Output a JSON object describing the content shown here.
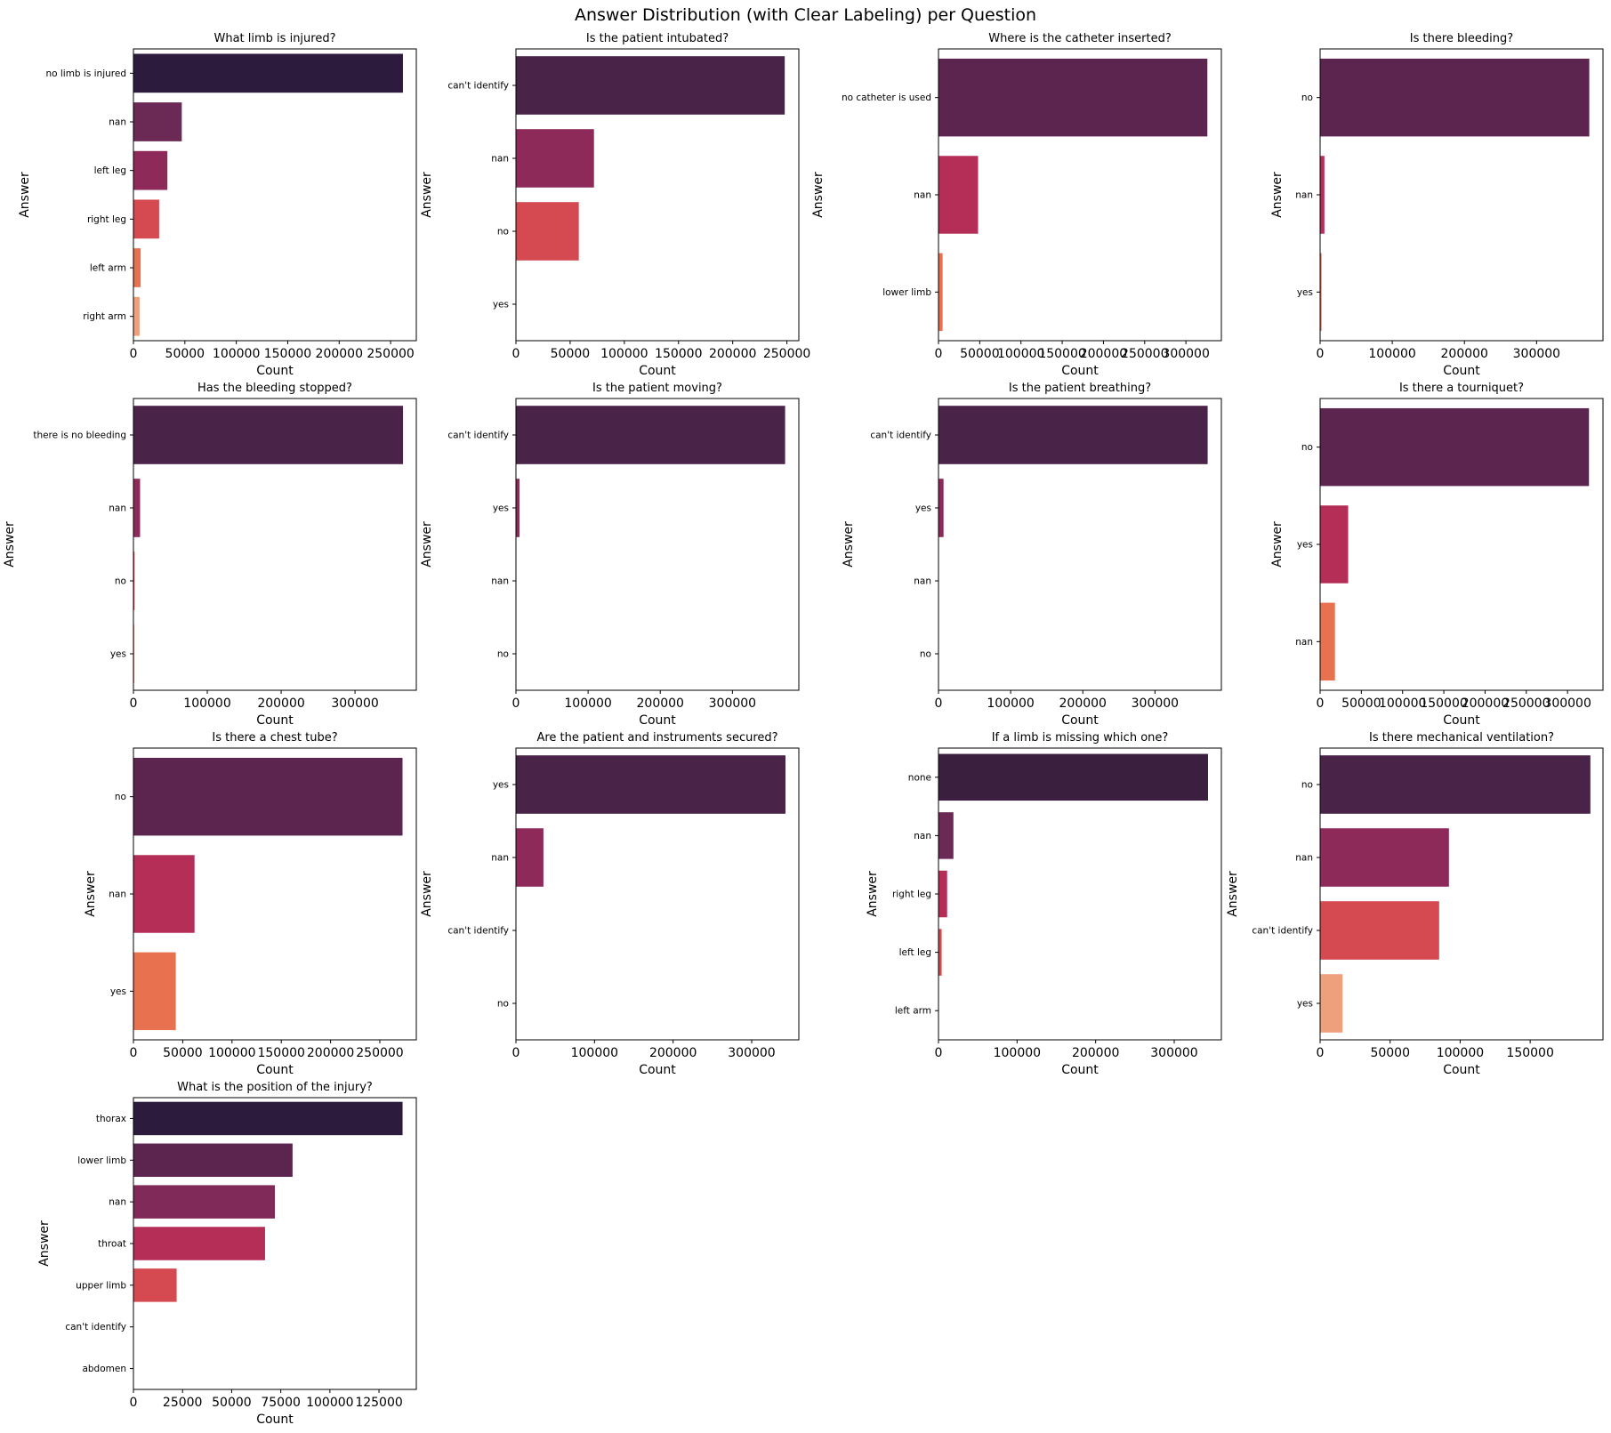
{
  "title": "Answer Distribution (with Clear Labeling) per Question",
  "palette": [
    "#2d1b3d",
    "#4a2349",
    "#6b2a55",
    "#8e2a5a",
    "#b52e57",
    "#d44a50",
    "#e8714f",
    "#eea07c"
  ],
  "chart_data": [
    {
      "type": "bar",
      "orientation": "horizontal",
      "title": "What limb is injured?",
      "xlabel": "Count",
      "ylabel": "Answer",
      "categories": [
        "no limb is injured",
        "nan",
        "left leg",
        "right leg",
        "left arm",
        "right arm"
      ],
      "values": [
        262000,
        47000,
        33000,
        25000,
        7000,
        6000
      ],
      "xlim": [
        0,
        275000
      ],
      "xticks": [
        0,
        50000,
        100000,
        150000,
        200000,
        250000
      ],
      "colors": [
        "#2d1b3d",
        "#6b2a55",
        "#8e2a5a",
        "#d44a50",
        "#e8714f",
        "#eea07c"
      ]
    },
    {
      "type": "bar",
      "orientation": "horizontal",
      "title": "Is the patient intubated?",
      "xlabel": "Count",
      "ylabel": "Answer",
      "categories": [
        "can't identify",
        "nan",
        "no",
        "yes"
      ],
      "values": [
        248000,
        72000,
        58000,
        0
      ],
      "xlim": [
        0,
        261000
      ],
      "xticks": [
        0,
        50000,
        100000,
        150000,
        200000,
        250000
      ],
      "colors": [
        "#4a2349",
        "#8e2a5a",
        "#d44a50",
        "#e8714f"
      ]
    },
    {
      "type": "bar",
      "orientation": "horizontal",
      "title": "Where is the catheter inserted?",
      "xlabel": "Count",
      "ylabel": "Answer",
      "categories": [
        "no catheter is used",
        "nan",
        "lower limb"
      ],
      "values": [
        326000,
        48000,
        5000
      ],
      "xlim": [
        0,
        343000
      ],
      "xticks": [
        0,
        50000,
        100000,
        150000,
        200000,
        250000,
        300000
      ],
      "colors": [
        "#5c2550",
        "#b52e57",
        "#e8714f"
      ]
    },
    {
      "type": "bar",
      "orientation": "horizontal",
      "title": "Is there bleeding?",
      "xlabel": "Count",
      "ylabel": "Answer",
      "categories": [
        "no",
        "nan",
        "yes"
      ],
      "values": [
        373000,
        6000,
        2000
      ],
      "xlim": [
        0,
        392000
      ],
      "xticks": [
        0,
        100000,
        200000,
        300000
      ],
      "colors": [
        "#5c2550",
        "#b52e57",
        "#e8714f"
      ]
    },
    {
      "type": "bar",
      "orientation": "horizontal",
      "title": "Has the bleeding stopped?",
      "xlabel": "Count",
      "ylabel": "Answer",
      "categories": [
        "there is no bleeding",
        "nan",
        "no",
        "yes"
      ],
      "values": [
        365000,
        9000,
        1500,
        1000
      ],
      "xlim": [
        0,
        383000
      ],
      "xticks": [
        0,
        100000,
        200000,
        300000
      ],
      "colors": [
        "#4a2349",
        "#8e2a5a",
        "#d44a50",
        "#e8714f"
      ]
    },
    {
      "type": "bar",
      "orientation": "horizontal",
      "title": "Is the patient moving?",
      "xlabel": "Count",
      "ylabel": "Answer",
      "categories": [
        "can't identify",
        "yes",
        "nan",
        "no"
      ],
      "values": [
        373000,
        5000,
        0,
        0
      ],
      "xlim": [
        0,
        392000
      ],
      "xticks": [
        0,
        100000,
        200000,
        300000
      ],
      "colors": [
        "#4a2349",
        "#8e2a5a",
        "#d44a50",
        "#e8714f"
      ]
    },
    {
      "type": "bar",
      "orientation": "horizontal",
      "title": "Is the patient breathing?",
      "xlabel": "Count",
      "ylabel": "Answer",
      "categories": [
        "can't identify",
        "yes",
        "nan",
        "no"
      ],
      "values": [
        373000,
        7000,
        0,
        0
      ],
      "xlim": [
        0,
        392000
      ],
      "xticks": [
        0,
        100000,
        200000,
        300000
      ],
      "colors": [
        "#4a2349",
        "#8e2a5a",
        "#d44a50",
        "#e8714f"
      ]
    },
    {
      "type": "bar",
      "orientation": "horizontal",
      "title": "Is there a tourniquet?",
      "xlabel": "Count",
      "ylabel": "Answer",
      "categories": [
        "no",
        "yes",
        "nan"
      ],
      "values": [
        326000,
        34000,
        18000
      ],
      "xlim": [
        0,
        343000
      ],
      "xticks": [
        0,
        50000,
        100000,
        150000,
        200000,
        250000,
        300000
      ],
      "colors": [
        "#5c2550",
        "#b52e57",
        "#e8714f"
      ]
    },
    {
      "type": "bar",
      "orientation": "horizontal",
      "title": "Is there a chest tube?",
      "xlabel": "Count",
      "ylabel": "Answer",
      "categories": [
        "no",
        "nan",
        "yes"
      ],
      "values": [
        273000,
        62000,
        43000
      ],
      "xlim": [
        0,
        287000
      ],
      "xticks": [
        0,
        50000,
        100000,
        150000,
        200000,
        250000
      ],
      "colors": [
        "#5c2550",
        "#b52e57",
        "#e8714f"
      ]
    },
    {
      "type": "bar",
      "orientation": "horizontal",
      "title": "Are the patient and instruments secured?",
      "xlabel": "Count",
      "ylabel": "Answer",
      "categories": [
        "yes",
        "nan",
        "can't identify",
        "no"
      ],
      "values": [
        343000,
        35000,
        0,
        0
      ],
      "xlim": [
        0,
        360000
      ],
      "xticks": [
        0,
        100000,
        200000,
        300000
      ],
      "colors": [
        "#4a2349",
        "#8e2a5a",
        "#d44a50",
        "#e8714f"
      ]
    },
    {
      "type": "bar",
      "orientation": "horizontal",
      "title": "If a limb is missing which one?",
      "xlabel": "Count",
      "ylabel": "Answer",
      "categories": [
        "none",
        "nan",
        "right leg",
        "left leg",
        "left arm"
      ],
      "values": [
        343000,
        19000,
        11000,
        4000,
        0
      ],
      "xlim": [
        0,
        360000
      ],
      "xticks": [
        0,
        100000,
        200000,
        300000
      ],
      "colors": [
        "#3a1f3e",
        "#6b2a55",
        "#b52e57",
        "#d44a50",
        "#e8714f"
      ]
    },
    {
      "type": "bar",
      "orientation": "horizontal",
      "title": "Is there mechanical ventilation?",
      "xlabel": "Count",
      "ylabel": "Answer",
      "categories": [
        "no",
        "nan",
        "can't identify",
        "yes"
      ],
      "values": [
        193000,
        92000,
        85000,
        16000
      ],
      "xlim": [
        0,
        202000
      ],
      "xticks": [
        0,
        50000,
        100000,
        150000
      ],
      "colors": [
        "#4a2349",
        "#8e2a5a",
        "#d44a50",
        "#eea07c"
      ]
    },
    {
      "type": "bar",
      "orientation": "horizontal",
      "title": "What is the position of the injury?",
      "xlabel": "Count",
      "ylabel": "Answer",
      "categories": [
        "thorax",
        "lower limb",
        "nan",
        "throat",
        "upper limb",
        "can't identify",
        "abdomen"
      ],
      "values": [
        137000,
        81000,
        72000,
        67000,
        22000,
        0,
        0
      ],
      "xlim": [
        0,
        144000
      ],
      "xticks": [
        0,
        25000,
        50000,
        75000,
        100000,
        125000
      ],
      "colors": [
        "#2d1b3d",
        "#5c2550",
        "#7f2a58",
        "#b52e57",
        "#d44a50",
        "#e8714f",
        "#eea07c"
      ]
    }
  ]
}
